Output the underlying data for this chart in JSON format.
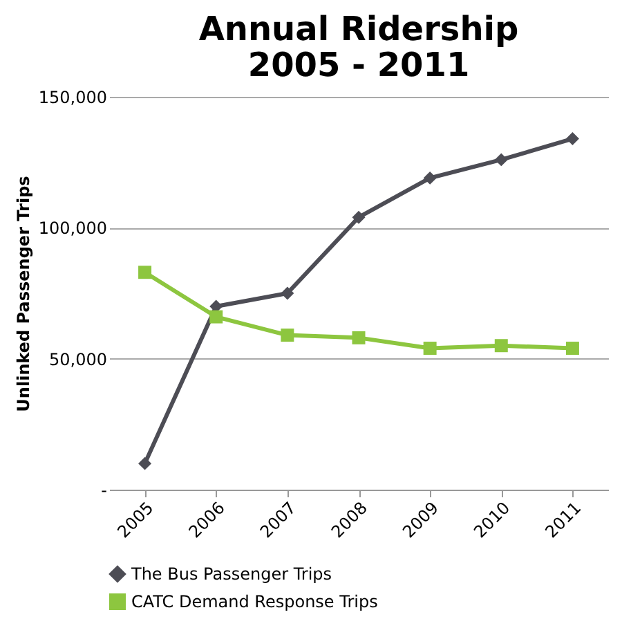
{
  "chart_data": {
    "type": "line",
    "title": [
      "Annual Ridership",
      "2005 - 2011"
    ],
    "ylabel": "Unlinked Passenger Trips",
    "categories": [
      "2005",
      "2006",
      "2007",
      "2008",
      "2009",
      "2010",
      "2011"
    ],
    "series": [
      {
        "name": "The Bus Passenger Trips",
        "color": "#4d4d55",
        "marker": "diamond",
        "values": [
          10000,
          70000,
          75000,
          104000,
          119000,
          126000,
          134000
        ]
      },
      {
        "name": "CATC Demand Response Trips",
        "color": "#8dc63f",
        "marker": "square",
        "values": [
          83000,
          66000,
          59000,
          58000,
          54000,
          55000,
          54000
        ]
      }
    ],
    "ylim": [
      0,
      150000
    ],
    "yticks": [
      {
        "value": 0,
        "label": "-"
      },
      {
        "value": 50000,
        "label": "50,000"
      },
      {
        "value": 100000,
        "label": "100,000"
      },
      {
        "value": 150000,
        "label": "150,000"
      }
    ],
    "grid": "y",
    "legend": "bottom",
    "line_style": "solid"
  }
}
